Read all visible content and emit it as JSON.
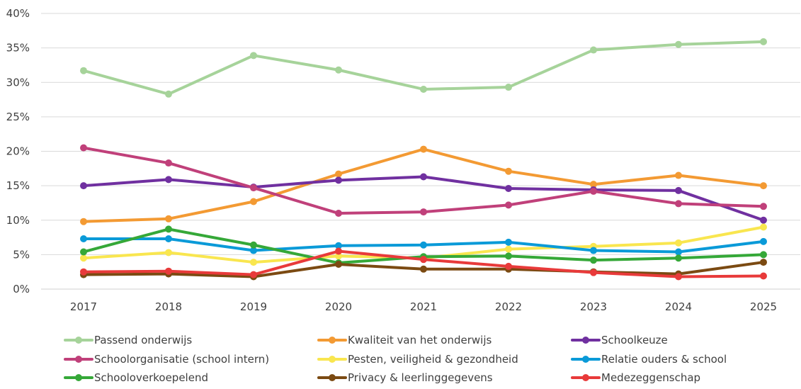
{
  "chart_data": {
    "type": "line",
    "title": "",
    "xlabel": "",
    "ylabel": "",
    "categories": [
      "2017",
      "2018",
      "2019",
      "2020",
      "2021",
      "2022",
      "2023",
      "2024",
      "2025"
    ],
    "ylim": [
      0,
      40
    ],
    "yticks": [
      "0%",
      "5%",
      "10%",
      "15%",
      "20%",
      "25%",
      "30%",
      "35%",
      "40%"
    ],
    "grid": true,
    "legend_position": "bottom",
    "series": [
      {
        "name": "Passend onderwijs",
        "color": "#a6d39a",
        "values": [
          31.7,
          28.3,
          33.9,
          31.8,
          29.0,
          29.3,
          34.7,
          35.5,
          35.9
        ]
      },
      {
        "name": "Kwaliteit van het onderwijs",
        "color": "#f39a33",
        "values": [
          9.8,
          10.2,
          12.7,
          16.7,
          20.3,
          17.1,
          15.2,
          16.5,
          15.0
        ]
      },
      {
        "name": "Schoolkeuze",
        "color": "#7030a0",
        "values": [
          15.0,
          15.9,
          14.8,
          15.8,
          16.3,
          14.6,
          14.4,
          14.3,
          10.0
        ]
      },
      {
        "name": "Schoolorganisatie (school intern)",
        "color": "#c0407a",
        "values": [
          20.5,
          18.3,
          14.7,
          11.0,
          11.2,
          12.2,
          14.2,
          12.4,
          12.0
        ]
      },
      {
        "name": "Pesten, veiligheid & gezondheid",
        "color": "#f9e64f",
        "values": [
          4.5,
          5.3,
          3.9,
          4.8,
          4.5,
          5.8,
          6.2,
          6.7,
          9.0
        ]
      },
      {
        "name": "Relatie ouders & school",
        "color": "#0a9ad8",
        "values": [
          7.3,
          7.3,
          5.6,
          6.3,
          6.4,
          6.8,
          5.6,
          5.4,
          6.9
        ]
      },
      {
        "name": "Schooloverkoepelend",
        "color": "#35a838",
        "values": [
          5.4,
          8.7,
          6.4,
          3.8,
          4.7,
          4.8,
          4.2,
          4.5,
          5.0
        ]
      },
      {
        "name": "Privacy & leerlinggegevens",
        "color": "#7b4a12",
        "values": [
          2.1,
          2.2,
          1.8,
          3.6,
          2.9,
          2.9,
          2.5,
          2.2,
          3.9
        ]
      },
      {
        "name": "Medezeggenschap",
        "color": "#e83a3a",
        "values": [
          2.5,
          2.6,
          2.1,
          5.5,
          4.3,
          3.3,
          2.4,
          1.8,
          1.9
        ]
      }
    ]
  }
}
